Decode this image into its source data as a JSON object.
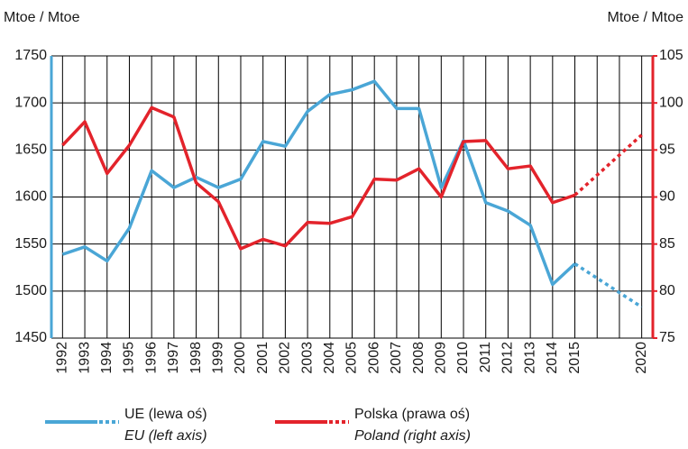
{
  "chart_data": {
    "type": "line",
    "y_label": "Mtoe / Mtoe",
    "y2_label": "Mtoe / Mtoe",
    "categories": [
      "1992",
      "1993",
      "1994",
      "1995",
      "1996",
      "1997",
      "1998",
      "1999",
      "2000",
      "2001",
      "2002",
      "2003",
      "2004",
      "2005",
      "2006",
      "2007",
      "2008",
      "2009",
      "2010",
      "2011",
      "2012",
      "2013",
      "2014",
      "2015",
      null,
      null,
      "2020"
    ],
    "projection_start": "2015",
    "series": [
      {
        "name": "UE (lewa oś)",
        "name_en": "EU (left axis)",
        "color": "#4aa6d6",
        "axis": "y",
        "values": [
          1539,
          1547,
          1532,
          1567,
          1628,
          1610,
          1621,
          1610,
          1619,
          1659,
          1654,
          1691,
          1709,
          1714,
          1723,
          1694,
          1694,
          1610,
          1660,
          1594,
          1585,
          1570,
          1507,
          1529,
          null,
          null,
          1483
        ]
      },
      {
        "name": "Polska (prawa oś)",
        "name_en": "Poland (right axis)",
        "color": "#e3232b",
        "axis": "y2",
        "values": [
          95.5,
          98,
          92.5,
          95.5,
          99.5,
          98.5,
          91.5,
          89.5,
          84.5,
          85.5,
          84.8,
          87.3,
          87.2,
          87.9,
          91.9,
          91.8,
          93,
          90,
          95.9,
          96,
          93,
          93.3,
          89.4,
          90.2,
          null,
          null,
          96.6
        ]
      }
    ],
    "ylim": [
      1450,
      1750
    ],
    "yticks": [
      1450,
      1500,
      1550,
      1600,
      1650,
      1700,
      1750
    ],
    "y2lim": [
      75,
      105
    ],
    "y2ticks": [
      75,
      80,
      85,
      90,
      95,
      100,
      105
    ],
    "grid": true
  }
}
